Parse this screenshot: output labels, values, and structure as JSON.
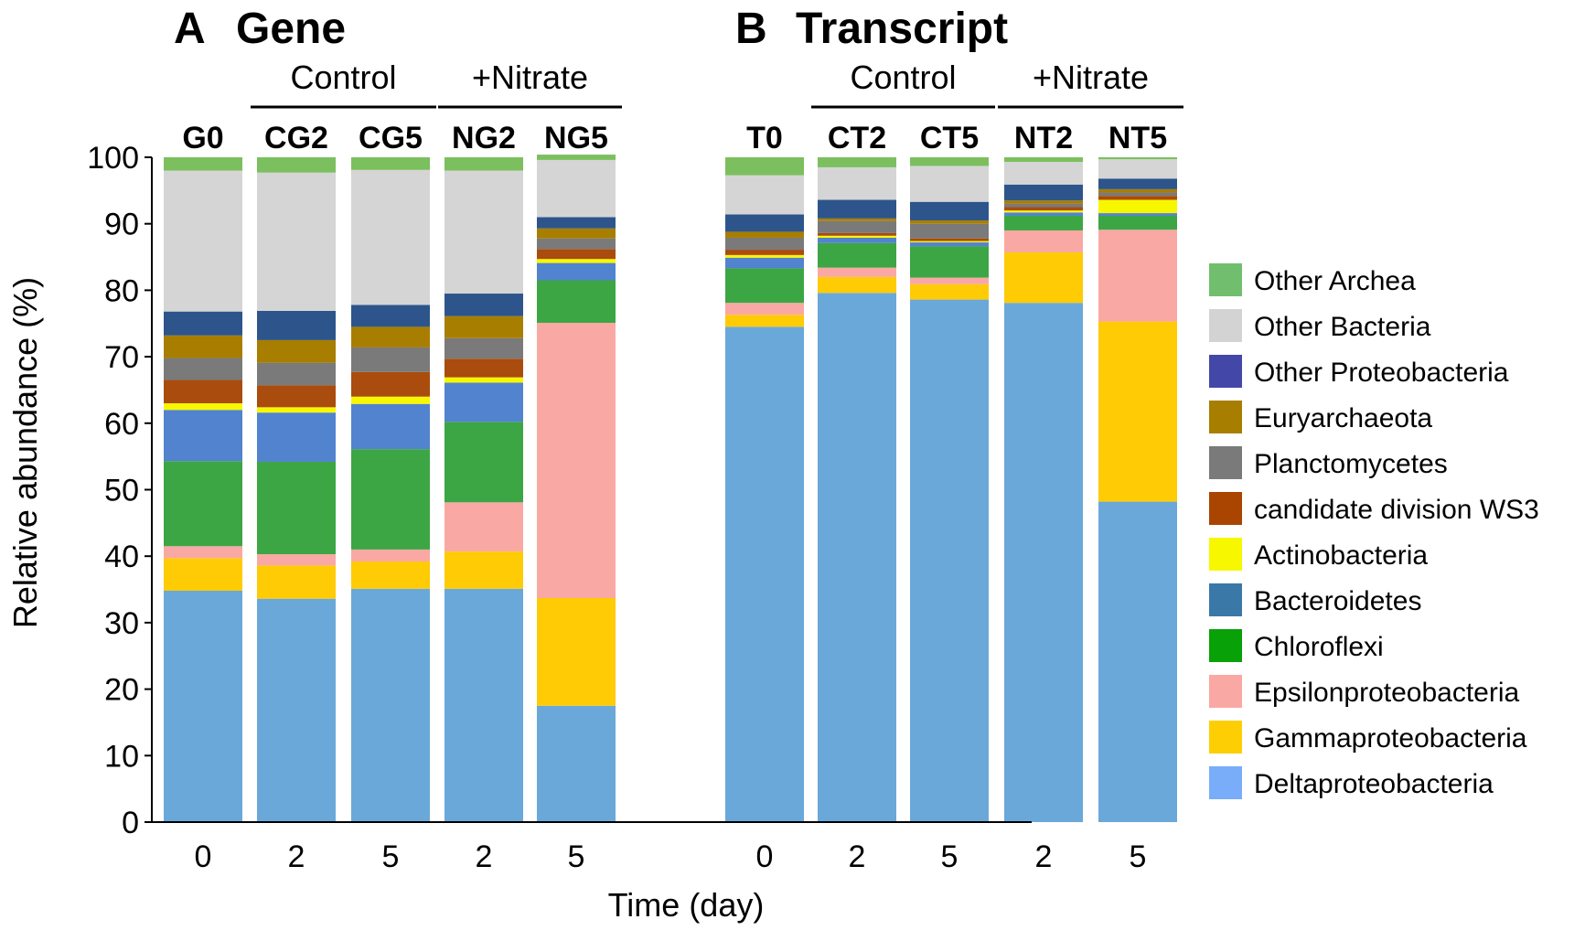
{
  "chart_data": {
    "type": "bar",
    "stacked": true,
    "ylabel": "Relative abundance  (%)",
    "xlabel": "Time (day)",
    "ylim": [
      0,
      100
    ],
    "yticks": [
      0,
      10,
      20,
      30,
      40,
      50,
      60,
      70,
      80,
      90,
      100
    ],
    "legend": {
      "position": "right",
      "entries": [
        {
          "name": "Other Archea",
          "color": "#71bf6e"
        },
        {
          "name": "Other Bacteria",
          "color": "#d3d3d3"
        },
        {
          "name": "Other Proteobacteria",
          "color": "#4347a8"
        },
        {
          "name": "Euryarchaeota",
          "color": "#a87e00"
        },
        {
          "name": "Planctomycetes",
          "color": "#7a7a7a"
        },
        {
          "name": "candidate division WS3",
          "color": "#a94500"
        },
        {
          "name": "Actinobacteria",
          "color": "#f7f700"
        },
        {
          "name": "Bacteroidetes",
          "color": "#3a78a8"
        },
        {
          "name": "Chloroflexi",
          "color": "#08a108"
        },
        {
          "name": "Epsilonproteobacteria",
          "color": "#faa8a4"
        },
        {
          "name": "Gammaproteobacteria",
          "color": "#fece05"
        },
        {
          "name": "Deltaproteobacteria",
          "color": "#79adfa"
        }
      ]
    },
    "stack_order_bottom_to_top": [
      "Base (Deltaproteobacteria)",
      "Gammaproteobacteria",
      "Epsilonproteobacteria",
      "Chloroflexi",
      "Bacteroidetes",
      "Actinobacteria",
      "candidate division WS3",
      "Planctomycetes",
      "Euryarchaeota",
      "Other Proteobacteria",
      "Other Bacteria",
      "Other Archea"
    ],
    "segment_colors": [
      "#6aa8da",
      "#fecb05",
      "#faa8a4",
      "#3ca644",
      "#5283cf",
      "#f7f700",
      "#aa4c0d",
      "#7a7a7a",
      "#a87e00",
      "#2d558b",
      "#d5d5d5",
      "#7bbf5f"
    ],
    "panels": [
      {
        "letter": "A",
        "title": "Gene",
        "groups": [
          {
            "label": "Control",
            "span": [
              1,
              2
            ]
          },
          {
            "label": "+Nitrate",
            "span": [
              3,
              4
            ]
          }
        ],
        "bars": [
          {
            "label": "G0",
            "x": "0",
            "values": [
              34.8,
              4.9,
              1.8,
              12.8,
              7.7,
              1.0,
              3.5,
              3.3,
              3.4,
              3.6,
              21.2,
              2.0
            ]
          },
          {
            "label": "CG2",
            "x": "2",
            "values": [
              33.6,
              5.0,
              1.7,
              13.9,
              7.4,
              0.8,
              3.3,
              3.4,
              3.4,
              4.4,
              20.8,
              2.3
            ]
          },
          {
            "label": "CG5",
            "x": "5",
            "values": [
              35.1,
              4.1,
              1.8,
              15.1,
              6.8,
              1.1,
              3.7,
              3.7,
              3.1,
              3.3,
              20.3,
              1.9
            ]
          },
          {
            "label": "NG2",
            "x": "2",
            "values": [
              35.1,
              5.6,
              7.4,
              12.1,
              5.9,
              0.8,
              2.8,
              3.1,
              3.3,
              3.4,
              18.5,
              2.0
            ]
          },
          {
            "label": "NG5",
            "x": "5",
            "values": [
              17.5,
              16.2,
              41.4,
              6.4,
              2.6,
              0.6,
              1.5,
              1.6,
              1.5,
              1.7,
              8.6,
              0.8
            ]
          }
        ]
      },
      {
        "letter": "B",
        "title": "Transcript",
        "groups": [
          {
            "label": "Control",
            "span": [
              1,
              2
            ]
          },
          {
            "label": "+Nitrate",
            "span": [
              3,
              4
            ]
          }
        ],
        "bars": [
          {
            "label": "T0",
            "x": "0",
            "values": [
              74.5,
              1.8,
              1.8,
              5.2,
              1.6,
              0.4,
              0.8,
              1.8,
              0.9,
              2.6,
              5.9,
              2.7
            ]
          },
          {
            "label": "CT2",
            "x": "2",
            "values": [
              79.6,
              2.4,
              1.4,
              3.7,
              0.8,
              0.3,
              0.4,
              1.8,
              0.4,
              2.8,
              4.9,
              1.5
            ]
          },
          {
            "label": "CT5",
            "x": "5",
            "values": [
              78.6,
              2.3,
              1.0,
              4.7,
              0.6,
              0.2,
              0.4,
              2.2,
              0.5,
              2.8,
              5.4,
              1.3
            ]
          },
          {
            "label": "NT2",
            "x": "2",
            "values": [
              78.1,
              7.6,
              3.3,
              2.2,
              0.5,
              0.3,
              0.5,
              0.5,
              0.5,
              2.4,
              3.4,
              0.7
            ]
          },
          {
            "label": "NT5",
            "x": "5",
            "values": [
              48.2,
              27.1,
              13.8,
              2.1,
              0.4,
              2.0,
              0.6,
              0.5,
              0.5,
              1.6,
              2.9,
              0.3
            ]
          }
        ]
      }
    ]
  }
}
